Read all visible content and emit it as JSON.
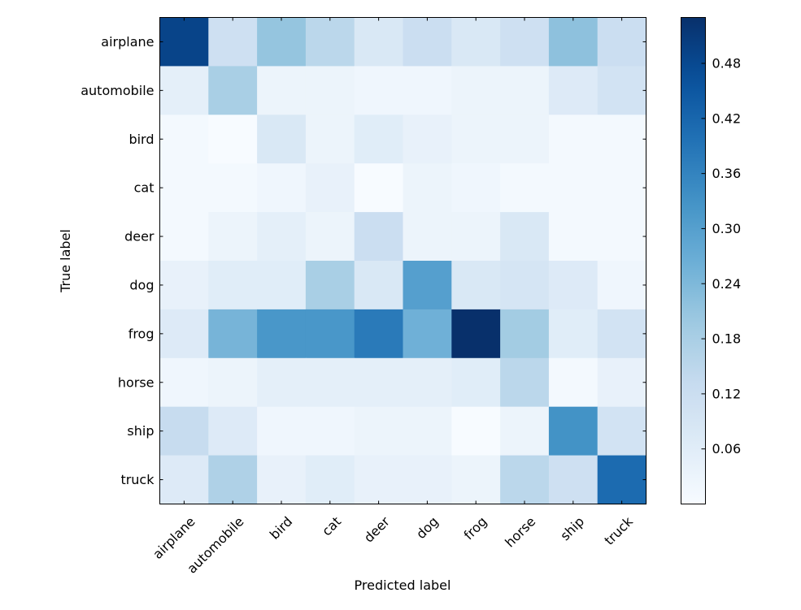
{
  "chart_data": {
    "type": "heatmap",
    "title": "",
    "xlabel": "Predicted label",
    "ylabel": "True label",
    "categories_x": [
      "airplane",
      "automobile",
      "bird",
      "cat",
      "deer",
      "dog",
      "frog",
      "horse",
      "ship",
      "truck"
    ],
    "categories_y": [
      "airplane",
      "automobile",
      "bird",
      "cat",
      "deer",
      "dog",
      "frog",
      "horse",
      "ship",
      "truck"
    ],
    "values": [
      [
        0.49,
        0.11,
        0.21,
        0.15,
        0.08,
        0.12,
        0.08,
        0.11,
        0.22,
        0.12
      ],
      [
        0.05,
        0.18,
        0.03,
        0.03,
        0.02,
        0.02,
        0.03,
        0.03,
        0.07,
        0.1
      ],
      [
        0.01,
        0.0,
        0.08,
        0.03,
        0.06,
        0.04,
        0.03,
        0.03,
        0.01,
        0.01
      ],
      [
        0.01,
        0.01,
        0.02,
        0.04,
        0.0,
        0.03,
        0.02,
        0.01,
        0.01,
        0.01
      ],
      [
        0.01,
        0.03,
        0.05,
        0.03,
        0.12,
        0.03,
        0.03,
        0.08,
        0.01,
        0.01
      ],
      [
        0.04,
        0.06,
        0.06,
        0.18,
        0.08,
        0.3,
        0.08,
        0.09,
        0.07,
        0.02
      ],
      [
        0.07,
        0.25,
        0.32,
        0.32,
        0.38,
        0.26,
        0.53,
        0.19,
        0.06,
        0.1
      ],
      [
        0.02,
        0.03,
        0.05,
        0.05,
        0.05,
        0.05,
        0.06,
        0.15,
        0.01,
        0.04
      ],
      [
        0.13,
        0.07,
        0.02,
        0.02,
        0.03,
        0.03,
        0.0,
        0.03,
        0.33,
        0.1
      ],
      [
        0.07,
        0.17,
        0.04,
        0.06,
        0.04,
        0.04,
        0.03,
        0.15,
        0.11,
        0.41
      ]
    ],
    "colormap": "Blues",
    "colorbar": {
      "min": 0.0,
      "max": 0.53,
      "ticks": [
        0.06,
        0.12,
        0.18,
        0.24,
        0.3,
        0.36,
        0.42,
        0.48
      ],
      "tick_labels": [
        "0.06",
        "0.12",
        "0.18",
        "0.24",
        "0.30",
        "0.36",
        "0.42",
        "0.48"
      ]
    },
    "grid": false
  }
}
